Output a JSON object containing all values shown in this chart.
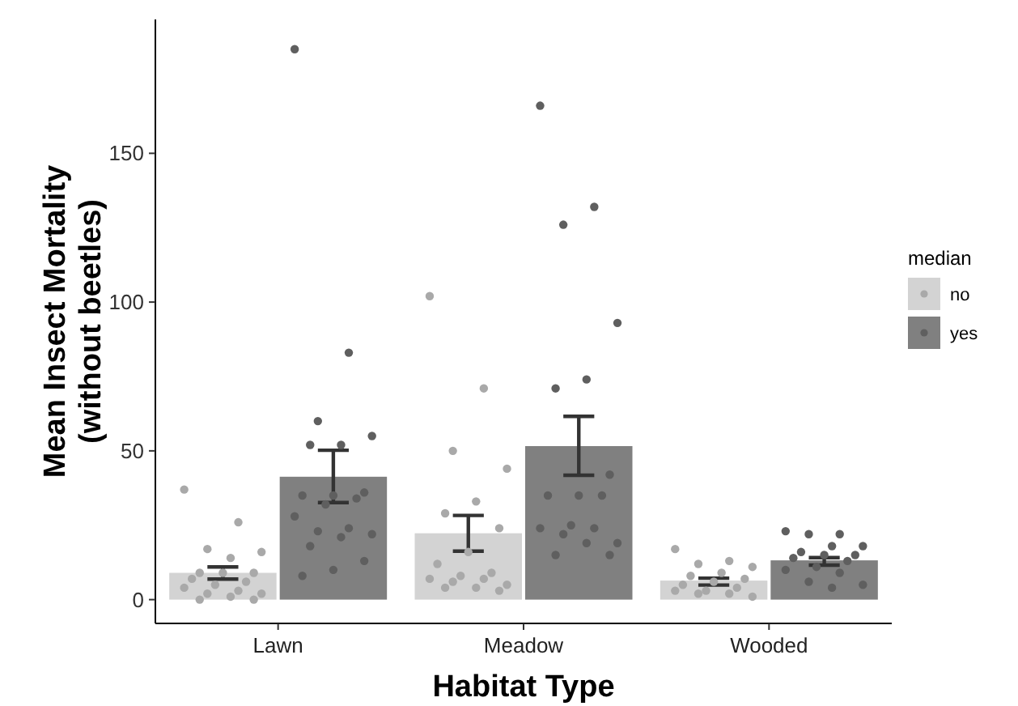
{
  "chart_data": {
    "type": "bar",
    "xlabel": "Habitat Type",
    "ylabel": "Mean Insect Mortality\n(without beetles)",
    "legend_title": "median",
    "legend": "right",
    "categories": [
      "Lawn",
      "Meadow",
      "Wooded"
    ],
    "ylim": [
      -8,
      195
    ],
    "yticks": [
      0,
      50,
      100,
      150
    ],
    "grid": false,
    "series": [
      {
        "name": "no",
        "color": "#d3d3d3",
        "values": [
          9,
          22.3,
          6.4
        ],
        "errors": [
          [
            6.9,
            11
          ],
          [
            16.3,
            28.3
          ],
          [
            4.9,
            7.2
          ]
        ]
      },
      {
        "name": "yes",
        "color": "#808080",
        "values": [
          41.3,
          51.6,
          13.2
        ],
        "errors": [
          [
            32.6,
            50.2
          ],
          [
            41.8,
            61.6
          ],
          [
            11.6,
            14.1
          ]
        ]
      },
      {
        "type": "scatter",
        "color": "#a9a9a9",
        "marker": "circle",
        "x": [
          "Lawn",
          "Lawn",
          "Lawn",
          "Lawn",
          "Lawn",
          "Lawn",
          "Lawn",
          "Lawn",
          "Lawn",
          "Lawn",
          "Lawn",
          "Lawn",
          "Lawn",
          "Lawn",
          "Lawn",
          "Lawn",
          "Lawn",
          "Lawn",
          "Meadow",
          "Meadow",
          "Meadow",
          "Meadow",
          "Meadow",
          "Meadow",
          "Meadow",
          "Meadow",
          "Meadow",
          "Meadow",
          "Meadow",
          "Meadow",
          "Meadow",
          "Meadow",
          "Meadow",
          "Meadow",
          "Meadow",
          "Meadow",
          "Wooded",
          "Wooded",
          "Wooded",
          "Wooded",
          "Wooded",
          "Wooded",
          "Wooded",
          "Wooded",
          "Wooded",
          "Wooded",
          "Wooded",
          "Wooded",
          "Wooded",
          "Wooded",
          "Wooded"
        ],
        "values": [
          37,
          26,
          17,
          16,
          14,
          9,
          9,
          9,
          7,
          6,
          5,
          4,
          3,
          2,
          2,
          1,
          0,
          0,
          102,
          71,
          50,
          44,
          33,
          29,
          24,
          16,
          12,
          9,
          8,
          7,
          7,
          6,
          5,
          4,
          4,
          3,
          17,
          13,
          12,
          11,
          9,
          8,
          7,
          6,
          5,
          4,
          3,
          3,
          2,
          2,
          1
        ]
      },
      {
        "type": "scatter",
        "color": "#5f5f5f",
        "marker": "circle",
        "x": [
          "Lawn",
          "Lawn",
          "Lawn",
          "Lawn",
          "Lawn",
          "Lawn",
          "Lawn",
          "Lawn",
          "Lawn",
          "Lawn",
          "Lawn",
          "Lawn",
          "Lawn",
          "Lawn",
          "Lawn",
          "Lawn",
          "Lawn",
          "Lawn",
          "Lawn",
          "Lawn",
          "Meadow",
          "Meadow",
          "Meadow",
          "Meadow",
          "Meadow",
          "Meadow",
          "Meadow",
          "Meadow",
          "Meadow",
          "Meadow",
          "Meadow",
          "Meadow",
          "Meadow",
          "Meadow",
          "Meadow",
          "Meadow",
          "Meadow",
          "Meadow",
          "Wooded",
          "Wooded",
          "Wooded",
          "Wooded",
          "Wooded",
          "Wooded",
          "Wooded",
          "Wooded",
          "Wooded",
          "Wooded",
          "Wooded",
          "Wooded",
          "Wooded",
          "Wooded",
          "Wooded",
          "Wooded"
        ],
        "values": [
          185,
          83,
          60,
          55,
          52,
          52,
          36,
          35,
          35,
          34,
          32,
          28,
          24,
          23,
          22,
          21,
          18,
          13,
          10,
          8,
          166,
          132,
          126,
          93,
          74,
          71,
          42,
          35,
          35,
          35,
          25,
          24,
          24,
          22,
          19,
          19,
          15,
          15,
          23,
          22,
          22,
          18,
          18,
          16,
          15,
          15,
          14,
          13,
          11,
          10,
          9,
          6,
          5,
          4
        ]
      }
    ]
  }
}
